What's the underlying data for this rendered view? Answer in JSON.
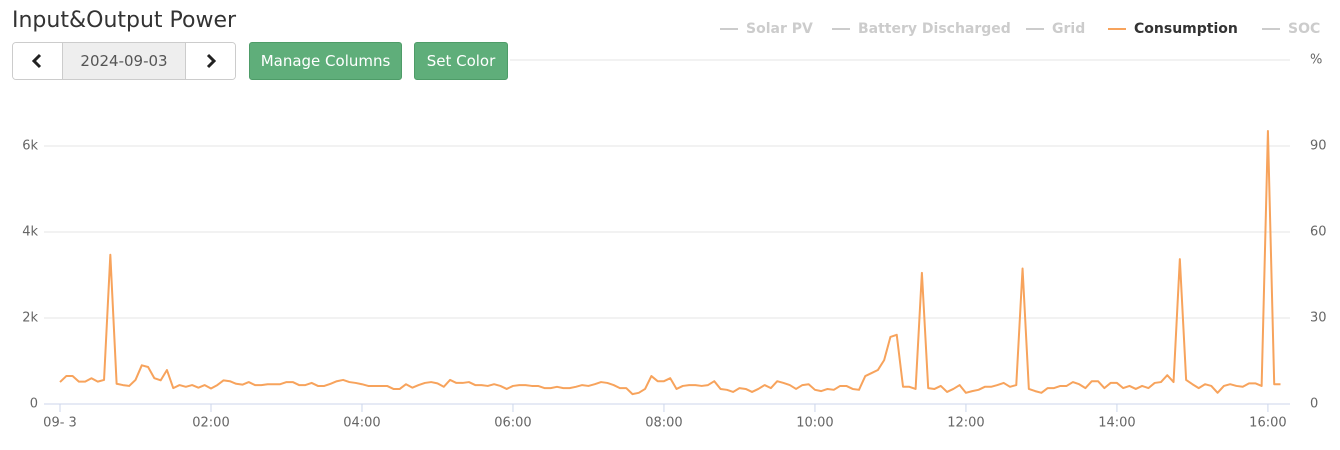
{
  "title": "Input&Output Power",
  "controls": {
    "date": "2024-09-03",
    "buttons": [
      "Manage Columns",
      "Set Color"
    ]
  },
  "chart_data": {
    "type": "line",
    "x": [
      "00:00",
      "00:05",
      "00:10",
      "00:15",
      "00:20",
      "00:25",
      "00:30",
      "00:35",
      "00:40",
      "00:45",
      "00:50",
      "00:55",
      "01:00",
      "01:05",
      "01:10",
      "01:15",
      "01:20",
      "01:25",
      "01:30",
      "01:35",
      "01:40",
      "01:45",
      "01:50",
      "01:55",
      "02:00",
      "02:05",
      "02:10",
      "02:15",
      "02:20",
      "02:25",
      "02:30",
      "02:35",
      "02:40",
      "02:45",
      "02:50",
      "02:55",
      "03:00",
      "03:05",
      "03:10",
      "03:15",
      "03:20",
      "03:25",
      "03:30",
      "03:35",
      "03:40",
      "03:45",
      "03:50",
      "03:55",
      "04:00",
      "04:05",
      "04:10",
      "04:15",
      "04:20",
      "04:25",
      "04:30",
      "04:35",
      "04:40",
      "04:45",
      "04:50",
      "04:55",
      "05:00",
      "05:05",
      "05:10",
      "05:15",
      "05:20",
      "05:25",
      "05:30",
      "05:35",
      "05:40",
      "05:45",
      "05:50",
      "05:55",
      "06:00",
      "06:05",
      "06:10",
      "06:15",
      "06:20",
      "06:25",
      "06:30",
      "06:35",
      "06:40",
      "06:45",
      "06:50",
      "06:55",
      "07:00",
      "07:05",
      "07:10",
      "07:15",
      "07:20",
      "07:25",
      "07:30",
      "07:35",
      "07:40",
      "07:45",
      "07:50",
      "07:55",
      "08:00",
      "08:05",
      "08:10",
      "08:15",
      "08:20",
      "08:25",
      "08:30",
      "08:35",
      "08:40",
      "08:45",
      "08:50",
      "08:55",
      "09:00",
      "09:05",
      "09:10",
      "09:15",
      "09:20",
      "09:25",
      "09:30",
      "09:35",
      "09:40",
      "09:45",
      "09:50",
      "09:55",
      "10:00",
      "10:05",
      "10:10",
      "10:15",
      "10:20",
      "10:25",
      "10:30",
      "10:35",
      "10:40",
      "10:45",
      "10:50",
      "10:55",
      "11:00",
      "11:05",
      "11:10",
      "11:15",
      "11:20",
      "11:25",
      "11:30",
      "11:35",
      "11:40",
      "11:45",
      "11:50",
      "11:55",
      "12:00",
      "12:05",
      "12:10",
      "12:15",
      "12:20",
      "12:25",
      "12:30",
      "12:35",
      "12:40",
      "12:45",
      "12:50",
      "12:55",
      "13:00",
      "13:05",
      "13:10",
      "13:15",
      "13:20",
      "13:25",
      "13:30",
      "13:35",
      "13:40",
      "13:45",
      "13:50",
      "13:55",
      "14:00",
      "14:05",
      "14:10",
      "14:15",
      "14:20",
      "14:25",
      "14:30",
      "14:35",
      "14:40",
      "14:45",
      "14:50",
      "14:55",
      "15:00",
      "15:05",
      "15:10",
      "15:15",
      "15:20",
      "15:25",
      "15:30",
      "15:35",
      "15:40",
      "15:45",
      "15:50",
      "15:55",
      "16:00",
      "16:05",
      "16:10"
    ],
    "series": [
      {
        "name": "Solar PV",
        "color": "#cccccc",
        "visible": false
      },
      {
        "name": "Battery Discharged",
        "color": "#cccccc",
        "visible": false
      },
      {
        "name": "Grid",
        "color": "#cccccc",
        "visible": false
      },
      {
        "name": "Consumption",
        "color": "#f7a35c",
        "visible": true,
        "values": [
          510,
          650,
          650,
          520,
          520,
          600,
          520,
          560,
          3470,
          470,
          440,
          420,
          560,
          900,
          860,
          600,
          550,
          790,
          370,
          440,
          400,
          440,
          380,
          440,
          360,
          440,
          550,
          530,
          470,
          450,
          510,
          440,
          440,
          460,
          460,
          460,
          510,
          510,
          440,
          440,
          490,
          420,
          420,
          470,
          530,
          560,
          510,
          490,
          460,
          420,
          420,
          420,
          420,
          350,
          350,
          460,
          380,
          440,
          490,
          510,
          480,
          400,
          560,
          490,
          490,
          510,
          440,
          440,
          420,
          460,
          420,
          350,
          420,
          440,
          440,
          420,
          420,
          370,
          370,
          400,
          370,
          370,
          400,
          440,
          420,
          460,
          510,
          490,
          440,
          370,
          370,
          230,
          260,
          350,
          650,
          530,
          530,
          600,
          350,
          420,
          440,
          440,
          420,
          440,
          530,
          350,
          330,
          280,
          370,
          350,
          280,
          350,
          440,
          370,
          530,
          490,
          440,
          350,
          440,
          460,
          330,
          300,
          350,
          330,
          420,
          420,
          350,
          330,
          650,
          720,
          790,
          1020,
          1560,
          1610,
          400,
          400,
          350,
          3050,
          370,
          350,
          420,
          280,
          350,
          440,
          260,
          300,
          330,
          400,
          400,
          440,
          490,
          400,
          440,
          3150,
          350,
          300,
          260,
          370,
          370,
          420,
          420,
          510,
          460,
          370,
          530,
          530,
          370,
          490,
          490,
          370,
          420,
          350,
          420,
          370,
          490,
          510,
          670,
          510,
          3370,
          560,
          460,
          370,
          460,
          420,
          260,
          420,
          460,
          420,
          400,
          480,
          480,
          420,
          6350,
          460,
          460
        ]
      },
      {
        "name": "SOC",
        "color": "#cccccc",
        "visible": false,
        "axis": "y2"
      }
    ],
    "xlim": [
      "00:00",
      "16:10"
    ],
    "xticks": [
      {
        "value": "00:00",
        "label": "09- 3"
      },
      "02:00",
      "04:00",
      "06:00",
      "08:00",
      "10:00",
      "12:00",
      "14:00",
      "16:00"
    ],
    "ylim": [
      0,
      8000
    ],
    "yticks": [
      0,
      {
        "value": 2000,
        "label": "2k"
      },
      {
        "value": 4000,
        "label": "4k"
      },
      {
        "value": 6000,
        "label": "6k"
      }
    ],
    "y2lim": [
      0,
      120
    ],
    "y2ticks": [
      0,
      30,
      60,
      90
    ],
    "y2_label": "%",
    "grid": true,
    "legend": "top-right"
  }
}
